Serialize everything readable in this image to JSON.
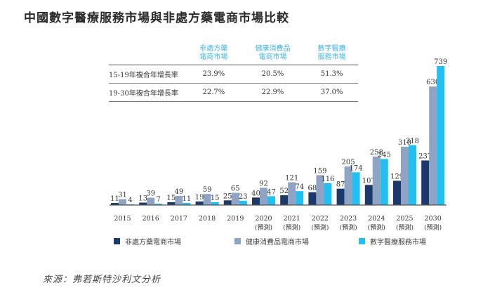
{
  "title": "中國數字醫療服務市場與非處方藥電商市場比較",
  "cagr_table": {
    "headers": [
      "非處方藥\n電商市場",
      "健康消費品\n電商市場",
      "數字醫療\n服務市場"
    ],
    "header_lines": [
      [
        "非處方藥",
        "電商市場"
      ],
      [
        "健康消費品",
        "電商市場"
      ],
      [
        "數字醫療",
        "服務市場"
      ]
    ],
    "rows": [
      {
        "label": "15-19年複合年增長率",
        "values": [
          "23.9%",
          "20.5%",
          "51.3%"
        ]
      },
      {
        "label": "19-30年複合年增長率",
        "values": [
          "22.7%",
          "22.9%",
          "37.0%"
        ]
      }
    ]
  },
  "colors": {
    "otc": "#1b3a6b",
    "health": "#8fa3c4",
    "digital": "#22bff0",
    "header_text": "#3fb6e6"
  },
  "chart_data": {
    "type": "bar",
    "title": "中國數字醫療服務市場與非處方藥電商市場比較",
    "xlabel": "",
    "ylabel": "",
    "categories": [
      "2015",
      "2016",
      "2017",
      "2018",
      "2019",
      "2020",
      "2021",
      "2022",
      "2023",
      "2024",
      "2025",
      "2030"
    ],
    "category_sublabels": [
      "",
      "",
      "",
      "",
      "",
      "(預測)",
      "(預測)",
      "(預測)",
      "(預測)",
      "(預測)",
      "(預測)",
      "(預測)"
    ],
    "series": [
      {
        "name": "非處方藥電商市場",
        "values": [
          11,
          13,
          15,
          19,
          25,
          40,
          52,
          68,
          87,
          107,
          129,
          237
        ]
      },
      {
        "name": "健康消費品電商市場",
        "values": [
          31,
          39,
          49,
          59,
          65,
          92,
          121,
          159,
          205,
          258,
          310,
          630
        ]
      },
      {
        "name": "數字醫療服務市場",
        "values": [
          4,
          7,
          11,
          15,
          23,
          47,
          74,
          116,
          174,
          245,
          318,
          739
        ]
      }
    ],
    "ylim": [
      0,
      739
    ],
    "grid": false,
    "legend_position": "bottom"
  },
  "legend": [
    {
      "label": "非處方藥電商市場"
    },
    {
      "label": "健康消費品電商市場"
    },
    {
      "label": "數字醫療服務市場"
    }
  ],
  "source": "來源：弗若斯特沙利文分析"
}
